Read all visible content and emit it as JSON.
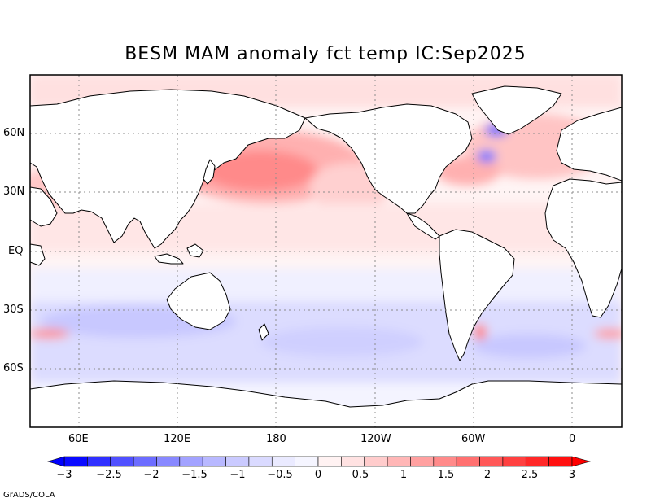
{
  "title": "BESM  MAM anomaly fct temp IC:Sep2025",
  "credit": "GrADS/COLA",
  "axes": {
    "lat_labels": [
      "60N",
      "30N",
      "EQ",
      "30S",
      "60S"
    ],
    "lon_labels": [
      "60E",
      "120E",
      "180",
      "120W",
      "60W",
      "0"
    ]
  },
  "colorbar": {
    "labels": [
      "-3",
      "-2.5",
      "-2",
      "-1.5",
      "-1",
      "-0.5",
      "0",
      "0.5",
      "1",
      "1.5",
      "2",
      "2.5",
      "3"
    ],
    "colors_neg": [
      "#0a0aff",
      "#3030ff",
      "#5050ff",
      "#6c6cff",
      "#8888ff",
      "#a2a2ff",
      "#b8b8ff",
      "#cacaff",
      "#dadaff",
      "#eaeaff",
      "#f5f5ff"
    ],
    "colors_pos": [
      "#fff2f2",
      "#ffe2e2",
      "#ffcccc",
      "#ffb6b6",
      "#ffa0a0",
      "#ff8a8a",
      "#ff7070",
      "#ff5858",
      "#ff4040",
      "#ff2828",
      "#ff1010"
    ]
  }
}
